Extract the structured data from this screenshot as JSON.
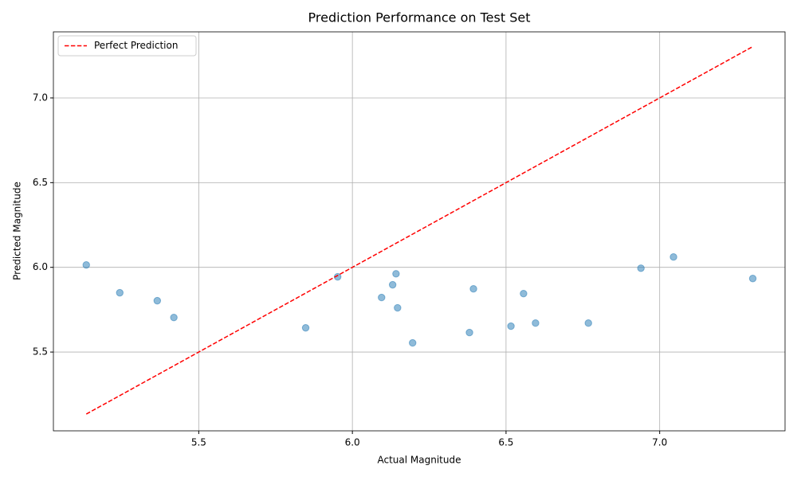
{
  "chart_data": {
    "type": "scatter",
    "title": "Prediction Performance on Test Set",
    "x_label": "Actual Magnitude",
    "y_label": "Predicted Magnitude",
    "series": [
      {
        "color": "#1f77b4",
        "x": [
          5.134,
          5.243,
          5.365,
          5.419,
          5.848,
          5.952,
          6.095,
          6.131,
          6.142,
          6.147,
          6.196,
          6.381,
          6.394,
          6.516,
          6.557,
          6.596,
          6.768,
          6.939,
          7.045,
          7.303
        ],
        "values": [
          6.014,
          5.85,
          5.803,
          5.704,
          5.643,
          5.944,
          5.822,
          5.897,
          5.962,
          5.761,
          5.554,
          5.615,
          5.873,
          5.653,
          5.845,
          5.671,
          5.671,
          5.995,
          6.061,
          5.934
        ]
      }
    ],
    "lines": [
      {
        "name": "Perfect Prediction",
        "color": "#ff0000",
        "style": "dashed",
        "x": [
          5.134,
          7.303
        ],
        "values": [
          5.134,
          7.303
        ]
      }
    ],
    "xlim": [
      5.027,
      7.408
    ],
    "ylim": [
      5.035,
      7.39
    ],
    "xticks": [
      5.5,
      {
        "value": 6,
        "label": "6.0"
      },
      6.5,
      {
        "value": 7,
        "label": "7.0"
      }
    ],
    "yticks": [
      5.5,
      {
        "value": 6,
        "label": "6.0"
      },
      6.5,
      {
        "value": 7,
        "label": "7.0"
      }
    ],
    "grid": true,
    "legend": "upper left"
  }
}
